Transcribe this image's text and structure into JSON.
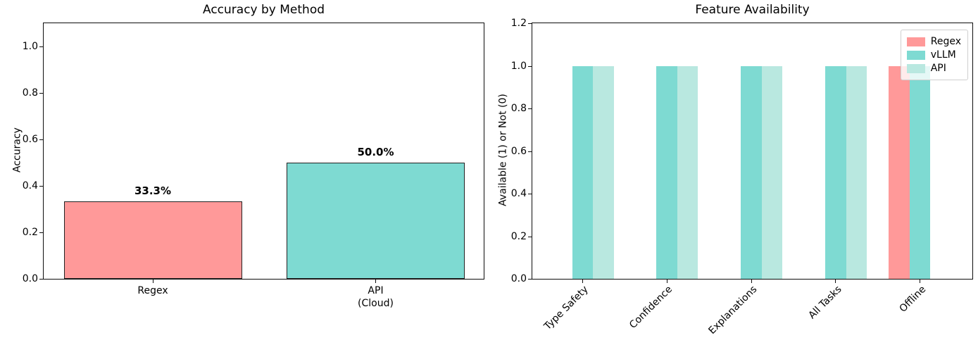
{
  "figure_title": "",
  "chart_data": [
    {
      "type": "bar",
      "title": "Accuracy by Method",
      "xlabel": "",
      "ylabel": "Accuracy",
      "categories": [
        "Regex",
        "API\n(Cloud)"
      ],
      "values": [
        0.333,
        0.5
      ],
      "value_labels": [
        "33.3%",
        "50.0%"
      ],
      "bar_colors": [
        "#ff9999",
        "#7edad2"
      ],
      "bar_edge_color": "#222222",
      "ylim": [
        0,
        1.1
      ],
      "ytick_labels": [
        "0.0",
        "0.2",
        "0.4",
        "0.6",
        "0.8",
        "1.0"
      ],
      "grid": false,
      "legend": null
    },
    {
      "type": "bar",
      "title": "Feature Availability",
      "xlabel": "",
      "ylabel": "Available (1) or Not (0)",
      "categories": [
        "Type Safety",
        "Confidence",
        "Explanations",
        "All Tasks",
        "Offline"
      ],
      "series": [
        {
          "name": "Regex",
          "color": "#ff9999",
          "values": [
            0,
            0,
            0,
            0,
            1
          ]
        },
        {
          "name": "vLLM",
          "color": "#7edad2",
          "values": [
            1,
            1,
            1,
            1,
            1
          ]
        },
        {
          "name": "API",
          "color": "#b9e8e0",
          "values": [
            1,
            1,
            1,
            1,
            0
          ]
        }
      ],
      "ylim": [
        0,
        1.2
      ],
      "ytick_labels": [
        "0.0",
        "0.2",
        "0.4",
        "0.6",
        "0.8",
        "1.0",
        "1.2"
      ],
      "xtick_rotation": 45,
      "grid": false,
      "legend": {
        "location": "upper right",
        "entries": [
          "Regex",
          "vLLM",
          "API"
        ]
      }
    }
  ]
}
